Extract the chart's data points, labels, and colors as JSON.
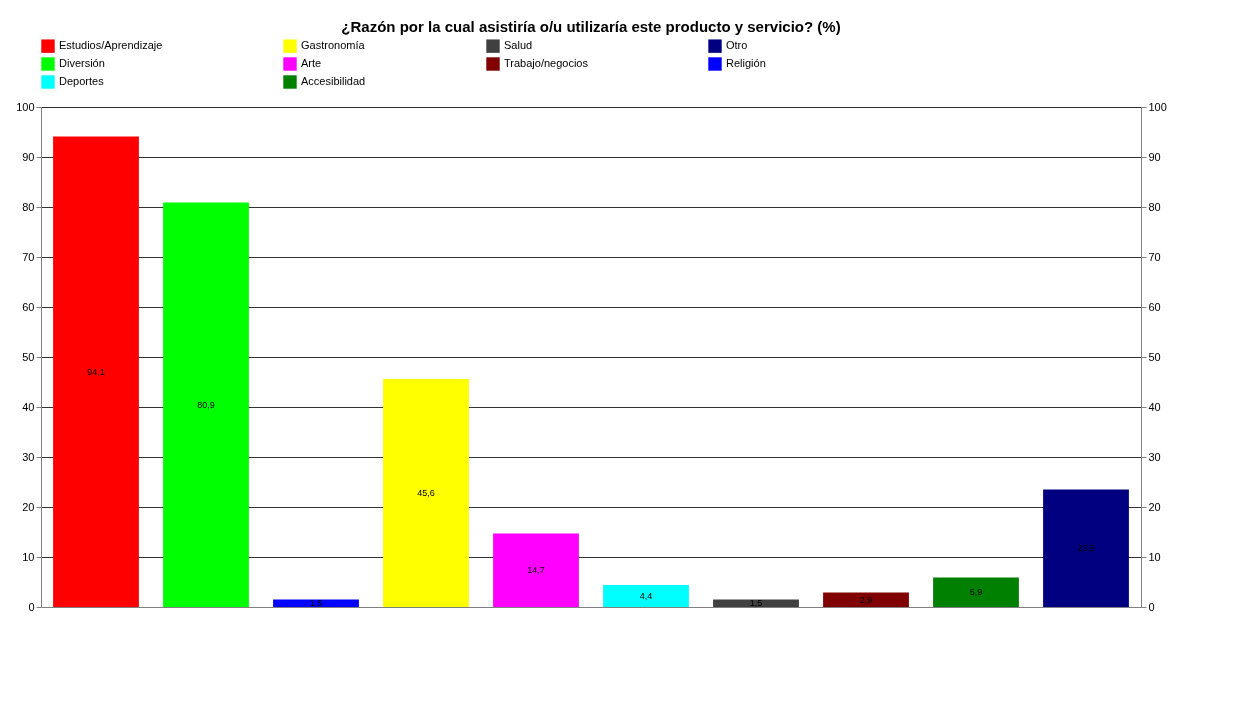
{
  "chart_data": {
    "type": "bar",
    "title": "¿Razón por la cual asistiría o/u utilizaría este producto y servicio? (%)",
    "categories": [
      null,
      null,
      null,
      null,
      null,
      null,
      null,
      null,
      null,
      null
    ],
    "series": [
      {
        "name": "Estudios/Aprendizaje",
        "color": "#ff0000",
        "values": [
          94.1,
          null,
          null,
          null,
          null,
          null,
          null,
          null,
          null,
          null
        ],
        "value_labels": [
          "94,1",
          null,
          null,
          null,
          null,
          null,
          null,
          null,
          null,
          null
        ]
      },
      {
        "name": "Diversión",
        "color": "#00ff00",
        "values": [
          null,
          80.9,
          null,
          null,
          null,
          null,
          null,
          null,
          null,
          null
        ],
        "value_labels": [
          null,
          "80,9",
          null,
          null,
          null,
          null,
          null,
          null,
          null,
          null
        ]
      },
      {
        "name": "Religión",
        "color": "#0000ff",
        "values": [
          null,
          null,
          1.5,
          null,
          null,
          null,
          null,
          null,
          null,
          null
        ],
        "value_labels": [
          null,
          null,
          "1,5",
          null,
          null,
          null,
          null,
          null,
          null,
          null
        ]
      },
      {
        "name": "Gastronomía",
        "color": "#ffff00",
        "values": [
          null,
          null,
          null,
          45.6,
          null,
          null,
          null,
          null,
          null,
          null
        ],
        "value_labels": [
          null,
          null,
          null,
          "45,6",
          null,
          null,
          null,
          null,
          null,
          null
        ]
      },
      {
        "name": "Arte",
        "color": "#ff00ff",
        "values": [
          null,
          null,
          null,
          null,
          14.7,
          null,
          null,
          null,
          null,
          null
        ],
        "value_labels": [
          null,
          null,
          null,
          null,
          "14,7",
          null,
          null,
          null,
          null,
          null
        ]
      },
      {
        "name": "Deportes",
        "color": "#00ffff",
        "values": [
          null,
          null,
          null,
          null,
          null,
          4.4,
          null,
          null,
          null,
          null
        ],
        "value_labels": [
          null,
          null,
          null,
          null,
          null,
          "4,4",
          null,
          null,
          null,
          null
        ]
      },
      {
        "name": "Salud",
        "color": "#404040",
        "values": [
          null,
          null,
          null,
          null,
          null,
          null,
          1.5,
          null,
          null,
          null
        ],
        "value_labels": [
          null,
          null,
          null,
          null,
          null,
          null,
          "1,5",
          null,
          null,
          null
        ]
      },
      {
        "name": "Trabajo/negocios",
        "color": "#800000",
        "values": [
          null,
          null,
          null,
          null,
          null,
          null,
          null,
          2.9,
          null,
          null
        ],
        "value_labels": [
          null,
          null,
          null,
          null,
          null,
          null,
          null,
          "2,9",
          null,
          null
        ]
      },
      {
        "name": "Accesibilidad",
        "color": "#008000",
        "values": [
          null,
          null,
          null,
          null,
          null,
          null,
          null,
          null,
          5.9,
          null
        ],
        "value_labels": [
          null,
          null,
          null,
          null,
          null,
          null,
          null,
          null,
          "5,9",
          null
        ]
      },
      {
        "name": "Otro",
        "color": "#000080",
        "values": [
          null,
          null,
          null,
          null,
          null,
          null,
          null,
          null,
          null,
          23.5
        ],
        "value_labels": [
          null,
          null,
          null,
          null,
          null,
          null,
          null,
          null,
          null,
          "23,5"
        ]
      }
    ],
    "ylim": [
      0,
      100
    ],
    "yticks": [
      0,
      10,
      20,
      30,
      40,
      50,
      60,
      70,
      80,
      90,
      100
    ],
    "y2lim": [
      0,
      100
    ],
    "y2ticks": [
      0,
      10,
      20,
      30,
      40,
      50,
      60,
      70,
      80,
      90,
      100
    ],
    "grid": "y",
    "legend": "top",
    "tick_labels": "y"
  }
}
